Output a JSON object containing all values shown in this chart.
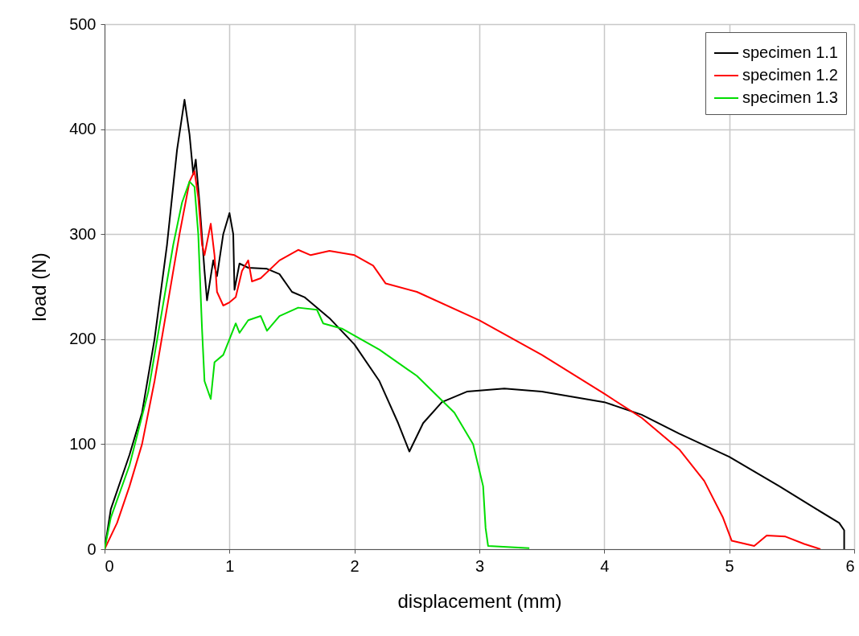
{
  "chart_data": {
    "type": "line",
    "xlabel": "displacement (mm)",
    "ylabel": "load (N)",
    "xlim": [
      0,
      6
    ],
    "xticks": [
      0,
      1,
      2,
      3,
      4,
      5,
      6
    ],
    "ylim": [
      0,
      500
    ],
    "yticks": [
      0,
      100,
      200,
      300,
      400,
      500
    ],
    "grid": true,
    "legend": "top right",
    "marker": "none",
    "line_style": "solid",
    "series": [
      {
        "name": "specimen 1.1",
        "color": "#000000",
        "x": [
          0,
          0.05,
          0.2,
          0.3,
          0.4,
          0.5,
          0.58,
          0.64,
          0.68,
          0.71,
          0.73,
          0.76,
          0.8,
          0.82,
          0.87,
          0.9,
          0.95,
          1.0,
          1.03,
          1.04,
          1.08,
          1.15,
          1.3,
          1.4,
          1.5,
          1.6,
          1.8,
          2.0,
          2.2,
          2.35,
          2.44,
          2.55,
          2.7,
          2.9,
          3.2,
          3.5,
          4.0,
          4.3,
          4.6,
          5.0,
          5.4,
          5.7,
          5.88,
          5.92,
          5.92
        ],
        "values": [
          0,
          38,
          90,
          130,
          200,
          290,
          380,
          428,
          395,
          357,
          371,
          330,
          265,
          237,
          275,
          260,
          300,
          320,
          300,
          247,
          272,
          268,
          267,
          262,
          245,
          240,
          220,
          195,
          160,
          120,
          93,
          120,
          140,
          150,
          153,
          150,
          140,
          128,
          110,
          88,
          60,
          38,
          25,
          18,
          0
        ]
      },
      {
        "name": "specimen 1.2",
        "color": "#ff0000",
        "x": [
          0,
          0.1,
          0.2,
          0.3,
          0.4,
          0.5,
          0.6,
          0.68,
          0.72,
          0.75,
          0.78,
          0.8,
          0.85,
          0.88,
          0.9,
          0.95,
          1.0,
          1.05,
          1.1,
          1.15,
          1.18,
          1.25,
          1.4,
          1.55,
          1.65,
          1.8,
          2.0,
          2.15,
          2.25,
          2.5,
          3.0,
          3.5,
          4.0,
          4.3,
          4.6,
          4.8,
          4.95,
          5.02,
          5.2,
          5.3,
          5.45,
          5.6,
          5.73
        ],
        "values": [
          0,
          25,
          60,
          100,
          160,
          230,
          300,
          350,
          360,
          335,
          290,
          280,
          310,
          280,
          245,
          232,
          235,
          240,
          265,
          275,
          255,
          258,
          275,
          285,
          280,
          284,
          280,
          270,
          253,
          245,
          218,
          185,
          148,
          125,
          95,
          65,
          30,
          8,
          3,
          13,
          12,
          5,
          0
        ]
      },
      {
        "name": "specimen 1.3",
        "color": "#00dd00",
        "x": [
          0,
          0.05,
          0.2,
          0.35,
          0.45,
          0.55,
          0.62,
          0.68,
          0.72,
          0.75,
          0.78,
          0.8,
          0.85,
          0.88,
          0.95,
          1.0,
          1.05,
          1.08,
          1.15,
          1.25,
          1.3,
          1.4,
          1.55,
          1.7,
          1.75,
          1.9,
          2.2,
          2.5,
          2.8,
          2.95,
          3.03,
          3.05,
          3.07,
          3.4
        ],
        "values": [
          0,
          30,
          80,
          150,
          220,
          290,
          330,
          350,
          345,
          300,
          210,
          160,
          143,
          178,
          185,
          200,
          215,
          206,
          218,
          222,
          208,
          222,
          230,
          228,
          215,
          210,
          190,
          165,
          130,
          100,
          60,
          20,
          3,
          1
        ]
      }
    ]
  }
}
